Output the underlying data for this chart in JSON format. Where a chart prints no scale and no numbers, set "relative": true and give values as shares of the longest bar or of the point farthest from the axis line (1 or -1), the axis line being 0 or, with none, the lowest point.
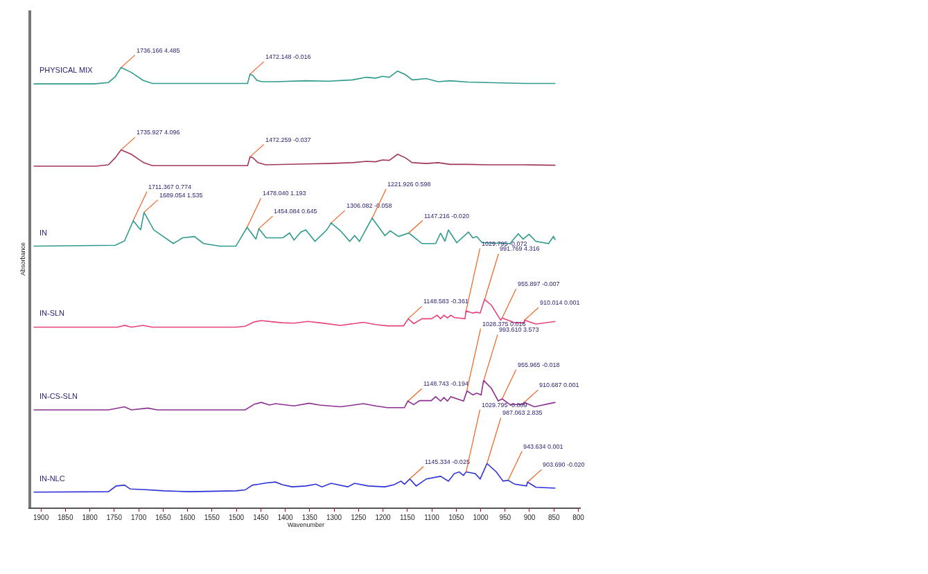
{
  "chart_data": {
    "type": "line",
    "relative": true,
    "xlabel": "Wavenumber",
    "ylabel": "Absorbance",
    "tick_labels": "x",
    "legend": false,
    "marker": "none",
    "line_style": "solid",
    "xlim": [
      1920,
      795
    ],
    "xticks": [
      1900,
      1850,
      1800,
      1750,
      1700,
      1650,
      1600,
      1550,
      1500,
      1450,
      1400,
      1350,
      1300,
      1250,
      1200,
      1150,
      1100,
      1050,
      1000,
      950,
      900,
      850,
      800
    ],
    "series": [
      {
        "name": "PHYSICAL MIX",
        "color": "#2e9a8c",
        "x": [
          1915,
          1791,
          1762,
          1748,
          1736,
          1715,
          1691,
          1672,
          1477,
          1472,
          1466,
          1458,
          1448,
          1420,
          1358,
          1311,
          1262,
          1234,
          1215,
          1201,
          1187,
          1170,
          1154,
          1140,
          1111,
          1087,
          1063,
          1026,
          987,
          911,
          847
        ],
        "values": [
          0.963,
          0.963,
          0.966,
          0.979,
          1.0,
          0.989,
          0.971,
          0.964,
          0.964,
          0.985,
          0.982,
          0.971,
          0.968,
          0.968,
          0.97,
          0.969,
          0.972,
          0.978,
          0.976,
          0.98,
          0.978,
          0.992,
          0.984,
          0.972,
          0.975,
          0.968,
          0.97,
          0.967,
          0.966,
          0.964,
          0.964
        ]
      },
      {
        "color": "#a0365a",
        "x": [
          1915,
          1788,
          1762,
          1748,
          1736,
          1715,
          1690,
          1672,
          1477,
          1472,
          1466,
          1456,
          1440,
          1358,
          1311,
          1262,
          1234,
          1215,
          1201,
          1187,
          1170,
          1154,
          1140,
          1111,
          1087,
          1063,
          1026,
          987,
          911,
          847
        ],
        "values": [
          0.776,
          0.776,
          0.779,
          0.795,
          0.813,
          0.803,
          0.784,
          0.777,
          0.777,
          0.797,
          0.795,
          0.784,
          0.779,
          0.781,
          0.782,
          0.784,
          0.787,
          0.786,
          0.79,
          0.789,
          0.803,
          0.795,
          0.784,
          0.782,
          0.784,
          0.78,
          0.78,
          0.779,
          0.779,
          0.778
        ]
      },
      {
        "name": "IN",
        "color": "#2e9a8c",
        "x": [
          1915,
          1748,
          1729,
          1711,
          1696,
          1689,
          1669,
          1629,
          1610,
          1586,
          1567,
          1534,
          1501,
          1478,
          1460,
          1454,
          1439,
          1405,
          1391,
          1382,
          1368,
          1358,
          1339,
          1315,
          1306,
          1287,
          1268,
          1258,
          1248,
          1230,
          1222,
          1196,
          1185,
          1168,
          1147,
          1120,
          1092,
          1082,
          1073,
          1066,
          1049,
          1025,
          1016,
          1008,
          997,
          940,
          923,
          913,
          901,
          887,
          861,
          851,
          847
        ],
        "values": [
          0.594,
          0.596,
          0.606,
          0.652,
          0.631,
          0.671,
          0.631,
          0.6,
          0.613,
          0.616,
          0.6,
          0.594,
          0.594,
          0.637,
          0.61,
          0.634,
          0.613,
          0.613,
          0.624,
          0.608,
          0.626,
          0.631,
          0.605,
          0.631,
          0.647,
          0.629,
          0.605,
          0.618,
          0.605,
          0.642,
          0.658,
          0.618,
          0.629,
          0.616,
          0.624,
          0.6,
          0.6,
          0.624,
          0.605,
          0.631,
          0.602,
          0.626,
          0.613,
          0.616,
          0.602,
          0.6,
          0.622,
          0.61,
          0.621,
          0.605,
          0.6,
          0.616,
          0.608
        ]
      },
      {
        "name": "IN-SLN",
        "color": "#e8407a",
        "x": [
          1915,
          1743,
          1729,
          1715,
          1691,
          1672,
          1501,
          1482,
          1463,
          1449,
          1425,
          1406,
          1382,
          1354,
          1330,
          1287,
          1240,
          1215,
          1191,
          1158,
          1148,
          1137,
          1120,
          1101,
          1089,
          1082,
          1075,
          1068,
          1061,
          1054,
          1032,
          1030,
          1016,
          1008,
          1001,
          992,
          978,
          959,
          956,
          930,
          911,
          910,
          887,
          847
        ],
        "values": [
          0.41,
          0.41,
          0.414,
          0.41,
          0.414,
          0.41,
          0.41,
          0.412,
          0.422,
          0.425,
          0.422,
          0.42,
          0.419,
          0.423,
          0.42,
          0.414,
          0.421,
          0.416,
          0.413,
          0.413,
          0.429,
          0.418,
          0.429,
          0.429,
          0.437,
          0.429,
          0.437,
          0.431,
          0.437,
          0.432,
          0.429,
          0.447,
          0.442,
          0.444,
          0.442,
          0.473,
          0.46,
          0.426,
          0.431,
          0.42,
          0.42,
          0.426,
          0.417,
          0.423
        ]
      },
      {
        "name": "IN-CS-SLN",
        "color": "#8b2d8f",
        "x": [
          1915,
          1762,
          1729,
          1715,
          1681,
          1662,
          1482,
          1463,
          1449,
          1432,
          1420,
          1382,
          1351,
          1330,
          1287,
          1240,
          1215,
          1191,
          1156,
          1149,
          1137,
          1125,
          1101,
          1092,
          1082,
          1075,
          1068,
          1061,
          1035,
          1028,
          1016,
          1008,
          999,
          994,
          978,
          964,
          956,
          940,
          913,
          911,
          890,
          847
        ],
        "values": [
          0.222,
          0.222,
          0.229,
          0.222,
          0.226,
          0.222,
          0.222,
          0.235,
          0.239,
          0.233,
          0.236,
          0.231,
          0.237,
          0.233,
          0.229,
          0.236,
          0.231,
          0.227,
          0.227,
          0.242,
          0.234,
          0.243,
          0.243,
          0.252,
          0.242,
          0.25,
          0.242,
          0.252,
          0.242,
          0.265,
          0.256,
          0.26,
          0.256,
          0.289,
          0.271,
          0.242,
          0.247,
          0.234,
          0.234,
          0.239,
          0.229,
          0.239
        ]
      },
      {
        "name": "IN-NLC",
        "color": "#2b2fd8",
        "x": [
          1915,
          1762,
          1746,
          1729,
          1717,
          1691,
          1648,
          1596,
          1501,
          1482,
          1467,
          1453,
          1439,
          1420,
          1406,
          1386,
          1358,
          1337,
          1325,
          1306,
          1272,
          1258,
          1230,
          1196,
          1177,
          1163,
          1156,
          1145,
          1132,
          1111,
          1082,
          1066,
          1054,
          1044,
          1035,
          1030,
          1011,
          1001,
          987,
          968,
          954,
          944,
          930,
          906,
          904,
          887,
          847
        ],
        "values": [
          0.035,
          0.036,
          0.049,
          0.051,
          0.042,
          0.041,
          0.038,
          0.036,
          0.038,
          0.04,
          0.051,
          0.053,
          0.056,
          0.058,
          0.052,
          0.047,
          0.049,
          0.053,
          0.047,
          0.055,
          0.047,
          0.055,
          0.049,
          0.047,
          0.052,
          0.06,
          0.053,
          0.065,
          0.049,
          0.065,
          0.071,
          0.06,
          0.077,
          0.081,
          0.073,
          0.081,
          0.077,
          0.065,
          0.1,
          0.081,
          0.06,
          0.062,
          0.053,
          0.049,
          0.058,
          0.046,
          0.044
        ]
      }
    ],
    "annotations": [
      {
        "text": "1736.166 4.485",
        "x": 1736.166,
        "y": 1.0
      },
      {
        "text": "1472.148 -0.016",
        "x": 1472.148,
        "y": 0.985
      },
      {
        "text": "1735.927 4.096",
        "x": 1735.927,
        "y": 0.813
      },
      {
        "text": "1472.259 -0.037",
        "x": 1472.259,
        "y": 0.797
      },
      {
        "text": "1711.367 0.774",
        "x": 1711.367,
        "y": 0.652
      },
      {
        "text": "1689.054 1.535",
        "x": 1689.054,
        "y": 0.671
      },
      {
        "text": "1478.040 1.193",
        "x": 1478.04,
        "y": 0.637
      },
      {
        "text": "1454.084 0.645",
        "x": 1454.084,
        "y": 0.634
      },
      {
        "text": "1306.082 -0.058",
        "x": 1306.082,
        "y": 0.647
      },
      {
        "text": "1221.926 0.598",
        "x": 1221.926,
        "y": 0.658
      },
      {
        "text": "1147.216 -0.020",
        "x": 1147.216,
        "y": 0.624
      },
      {
        "text": "1148.583 -0.361",
        "x": 1148.583,
        "y": 0.429
      },
      {
        "text": "1029.795 -0.072",
        "x": 1029.795,
        "y": 0.447
      },
      {
        "text": "991.769 4.316",
        "x": 991.769,
        "y": 0.473
      },
      {
        "text": "955.897 -0.007",
        "x": 955.897,
        "y": 0.431
      },
      {
        "text": "910.014 0.001",
        "x": 910.014,
        "y": 0.426
      },
      {
        "text": "1148.743 -0.194",
        "x": 1148.743,
        "y": 0.242
      },
      {
        "text": "1028.375 0.016",
        "x": 1028.375,
        "y": 0.265
      },
      {
        "text": "993.610 3.573",
        "x": 993.61,
        "y": 0.289
      },
      {
        "text": "955.965 -0.018",
        "x": 955.965,
        "y": 0.247
      },
      {
        "text": "910.687 0.001",
        "x": 910.687,
        "y": 0.239
      },
      {
        "text": "1145.334 -0.025",
        "x": 1145.334,
        "y": 0.065
      },
      {
        "text": "1029.795 -0.009",
        "x": 1029.795,
        "y": 0.081
      },
      {
        "text": "987.063 2.835",
        "x": 987.063,
        "y": 0.1
      },
      {
        "text": "943.634 0.001",
        "x": 943.634,
        "y": 0.062
      },
      {
        "text": "903.690 -0.020",
        "x": 903.69,
        "y": 0.058
      }
    ]
  }
}
